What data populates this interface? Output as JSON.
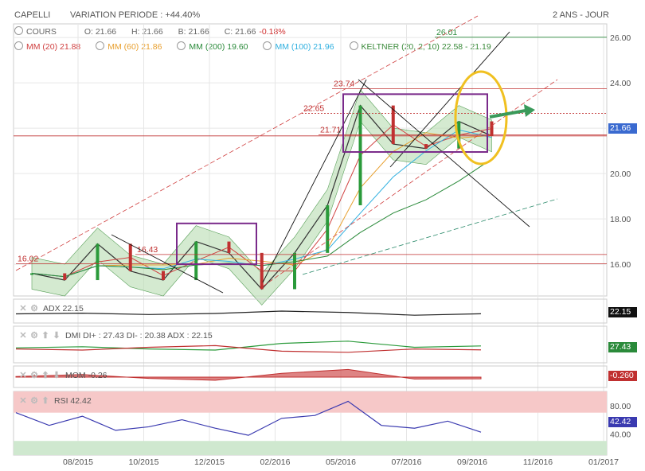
{
  "header": {
    "instrument": "CAPELLI",
    "variation": "VARIATION PERIODE : +44.40%",
    "period": "2 ANS - JOUR"
  },
  "legend": {
    "cours": "COURS",
    "o": "O: 21.66",
    "h": "H: 21.66",
    "b": "B: 21.66",
    "c": "C: 21.66",
    "chg": "-0.18%",
    "mm20": "MM (20)  21.88",
    "mm60": "MM (60)  21.86",
    "mm200": "MM (200)  19.60",
    "mm100": "MM (100)  21.96",
    "keltner": "KELTNER (20, 2, 10)  22.58 - 21.19"
  },
  "colors": {
    "mm20": "#d04040",
    "mm60": "#e8a030",
    "mm200": "#2a8a3a",
    "mm100": "#30b0e0",
    "keltner": "#3a8a3a",
    "rsi": "#3a3ab0",
    "mom": "#c03030",
    "dmi_plus": "#2a9a3a",
    "dmi_minus": "#c03030",
    "price_badge": "#3a6ad0"
  },
  "chart_data": [
    {
      "type": "line",
      "title": "CAPELLI",
      "x_ticks": [
        "08/2015",
        "10/2015",
        "12/2015",
        "02/2016",
        "05/2016",
        "07/2016",
        "09/2016",
        "11/2016",
        "01/2017"
      ],
      "y_ticks": [
        "16.00",
        "18.00",
        "20.00",
        "22.00",
        "24.00",
        "26.00"
      ],
      "ylim": [
        14.6,
        26.6
      ],
      "x": [
        "2015-07",
        "2015-08",
        "2015-09",
        "2015-10",
        "2015-11",
        "2015-12",
        "2016-01",
        "2016-02",
        "2016-03",
        "2016-04",
        "2016-05",
        "2016-06",
        "2016-07",
        "2016-08",
        "2016-09"
      ],
      "series": [
        {
          "name": "COURS",
          "values": [
            15.6,
            15.3,
            16.9,
            15.7,
            15.3,
            17.0,
            16.5,
            14.9,
            16.5,
            18.6,
            23.0,
            21.3,
            21.1,
            22.3,
            21.66
          ]
        }
      ],
      "annotations": [
        "26.01",
        "23.74",
        "22.65",
        "21.71",
        "16.43",
        "16.02"
      ],
      "last_price": "21.66"
    },
    {
      "type": "line",
      "title": "ADX",
      "x": [
        "2015-07",
        "2015-09",
        "2015-11",
        "2016-01",
        "2016-03",
        "2016-05",
        "2016-07",
        "2016-09"
      ],
      "series": [
        {
          "name": "ADX",
          "values": [
            22,
            24,
            20,
            23,
            30,
            26,
            18,
            22.15
          ]
        }
      ],
      "value_label": "ADX  22.15",
      "last": "22.15"
    },
    {
      "type": "line",
      "title": "DMI",
      "x": [
        "2015-07",
        "2015-09",
        "2015-11",
        "2016-01",
        "2016-03",
        "2016-05",
        "2016-07",
        "2016-09"
      ],
      "series": [
        {
          "name": "DI+",
          "values": [
            24,
            26,
            22,
            20,
            32,
            36,
            25,
            27.43
          ]
        },
        {
          "name": "DI-",
          "values": [
            22,
            20,
            25,
            28,
            18,
            16,
            22,
            20.38
          ]
        }
      ],
      "value_label": "DMI  DI+ : 27.43  DI- : 20.38  ADX : 22.15",
      "last": "27.43"
    },
    {
      "type": "area",
      "title": "MOM",
      "x": [
        "2015-07",
        "2015-09",
        "2015-11",
        "2016-01",
        "2016-03",
        "2016-05",
        "2016-07",
        "2016-09"
      ],
      "series": [
        {
          "name": "MOM",
          "values": [
            0.1,
            0.4,
            -0.2,
            -0.5,
            0.6,
            1.2,
            -0.3,
            -0.26
          ]
        }
      ],
      "value_label": "MOM  -0.26",
      "last": "-0.260"
    },
    {
      "type": "line",
      "title": "RSI",
      "y_ticks": [
        "40.00",
        "80.00"
      ],
      "ylim": [
        10,
        100
      ],
      "x": [
        "2015-07",
        "2015-08",
        "2015-09",
        "2015-10",
        "2015-11",
        "2015-12",
        "2016-01",
        "2016-02",
        "2016-03",
        "2016-04",
        "2016-05",
        "2016-06",
        "2016-07",
        "2016-08",
        "2016-09"
      ],
      "series": [
        {
          "name": "RSI",
          "values": [
            70,
            52,
            65,
            45,
            50,
            60,
            48,
            38,
            62,
            66,
            86,
            52,
            48,
            58,
            42.42
          ]
        }
      ],
      "value_label": "RSI  42.42",
      "last": "42.42"
    }
  ]
}
